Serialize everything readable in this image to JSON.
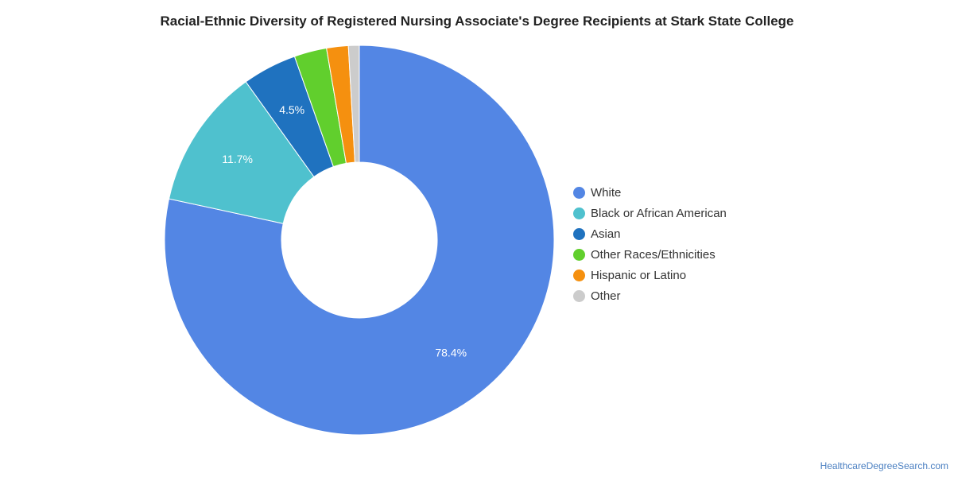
{
  "chart_data": {
    "type": "pie",
    "title": "Racial-Ethnic Diversity of Registered Nursing Associate's Degree Recipients at Stark State College",
    "donut": true,
    "legend_position": "right",
    "categories": [
      "White",
      "Black or African American",
      "Asian",
      "Other Races/Ethnicities",
      "Hispanic or Latino",
      "Other"
    ],
    "values": [
      78.4,
      11.7,
      4.5,
      2.7,
      1.8,
      0.9
    ],
    "data_labels": [
      "78.4%",
      "11.7%",
      "4.5%",
      "",
      "",
      ""
    ],
    "colors": [
      "#5386e4",
      "#4fc1ce",
      "#1f72bf",
      "#61cf2d",
      "#f5900f",
      "#cccccc"
    ]
  },
  "watermark": "HealthcareDegreeSearch.com"
}
